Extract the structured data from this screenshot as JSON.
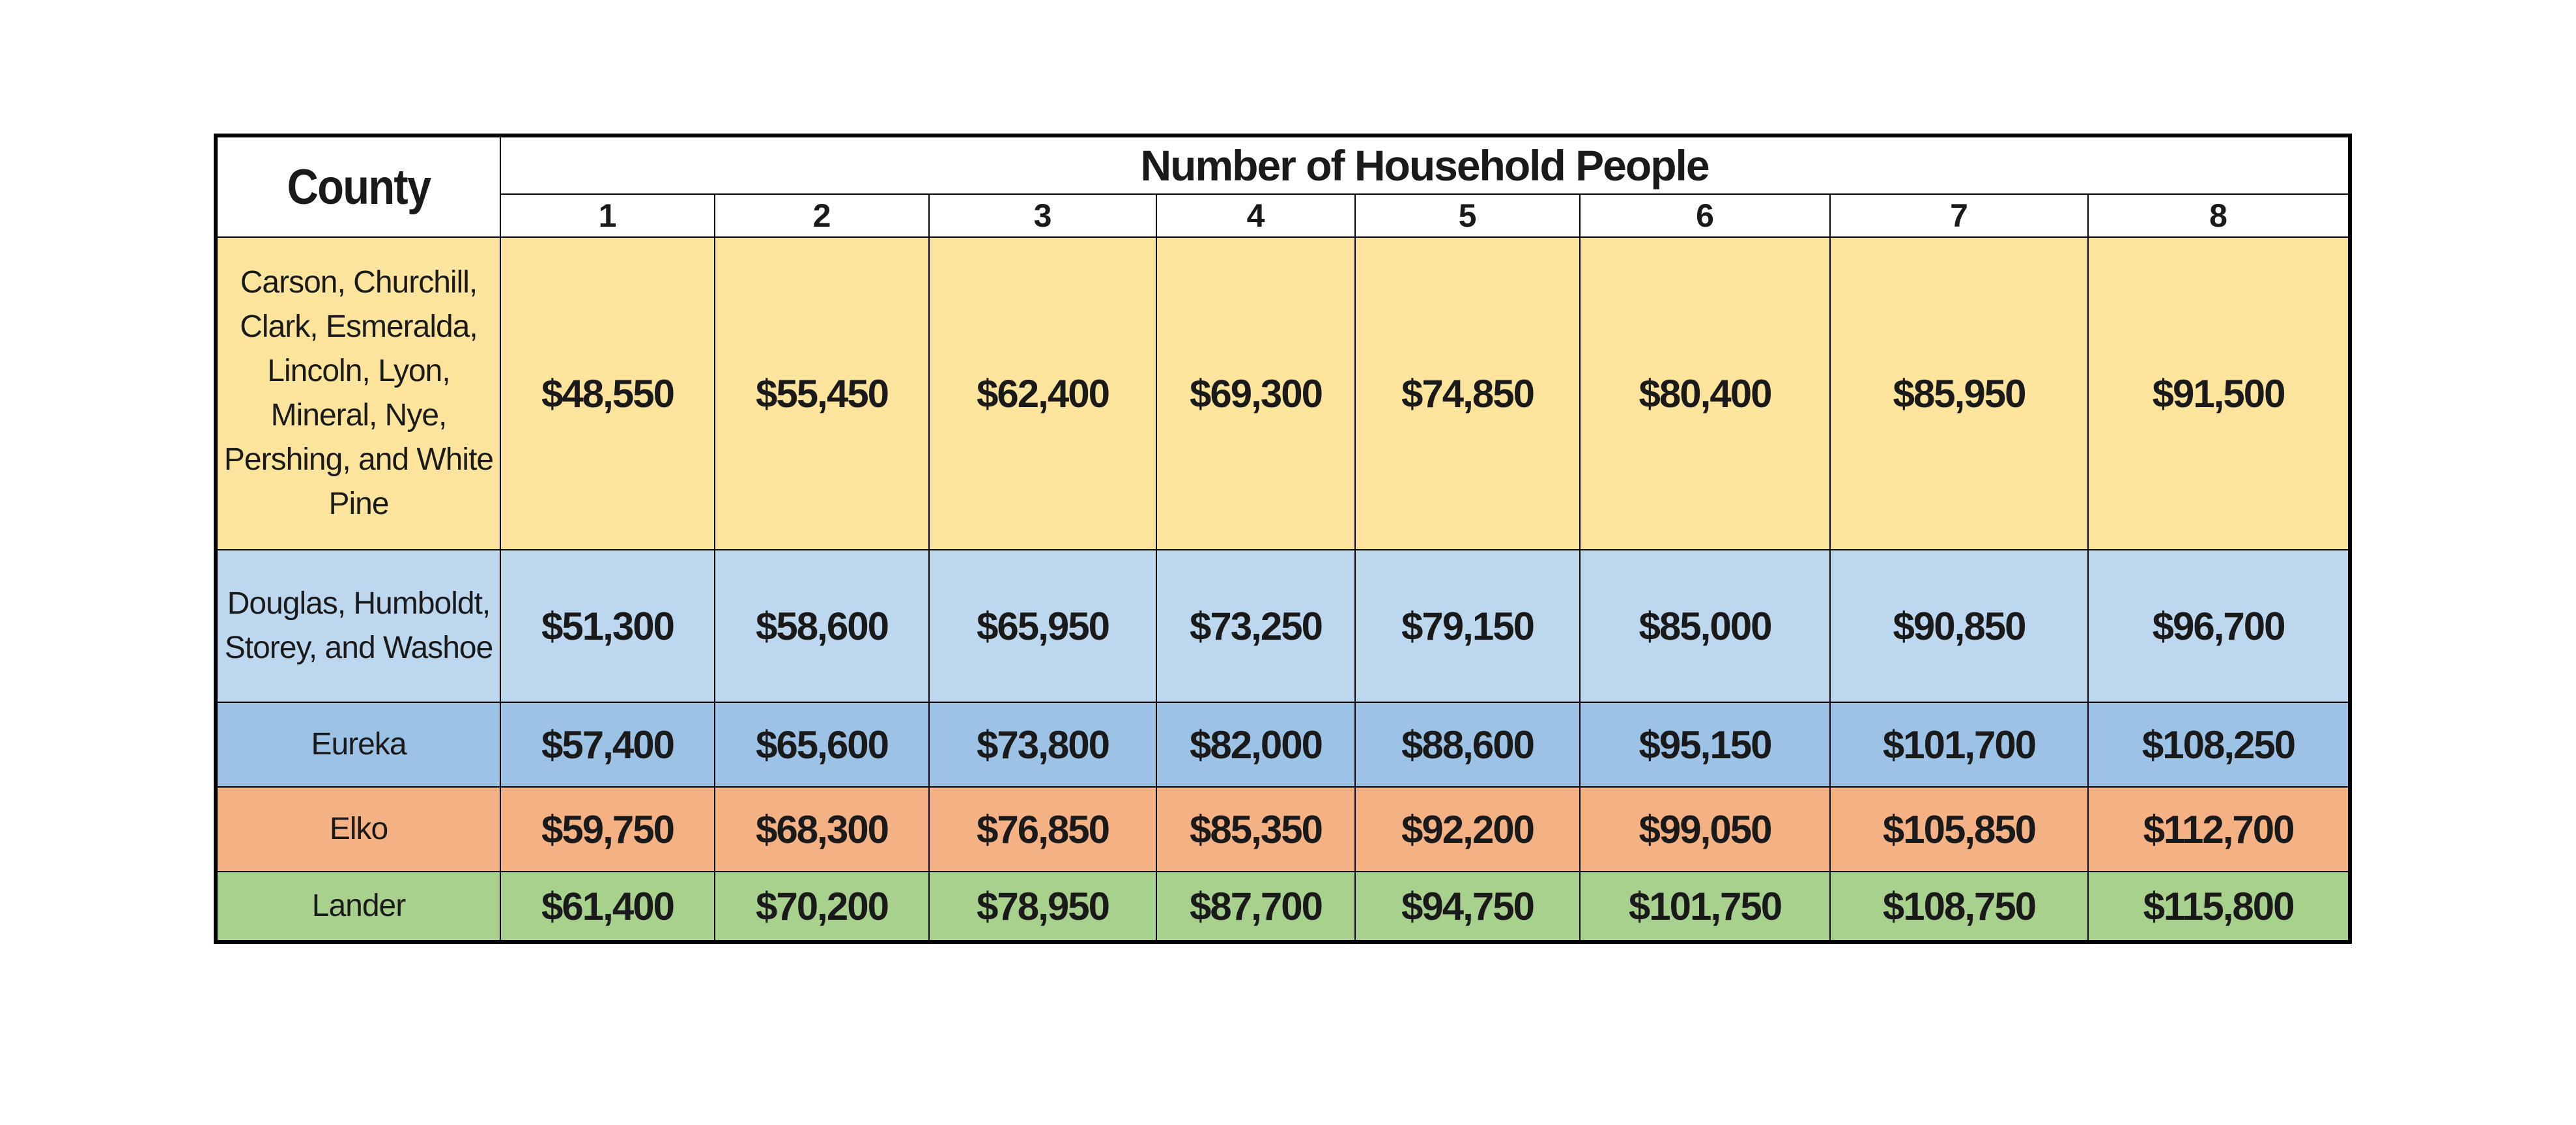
{
  "table": {
    "county_header": "County",
    "group_header": "Number of Household People",
    "household_sizes": [
      "1",
      "2",
      "3",
      "4",
      "5",
      "6",
      "7",
      "8"
    ],
    "rows": [
      {
        "county": "Carson, Churchill, Clark, Esmeralda, Lincoln, Lyon, Mineral, Nye, Pershing, and White Pine",
        "values": [
          "$48,550",
          "$55,450",
          "$62,400",
          "$69,300",
          "$74,850",
          "$80,400",
          "$85,950",
          "$91,500"
        ],
        "color": "#fde49c"
      },
      {
        "county": "Douglas, Humboldt, Storey, and Washoe",
        "values": [
          "$51,300",
          "$58,600",
          "$65,950",
          "$73,250",
          "$79,150",
          "$85,000",
          "$90,850",
          "$96,700"
        ],
        "color": "#bdd7ee"
      },
      {
        "county": "Eureka",
        "values": [
          "$57,400",
          "$65,600",
          "$73,800",
          "$82,000",
          "$88,600",
          "$95,150",
          "$101,700",
          "$108,250"
        ],
        "color": "#9cc2e5"
      },
      {
        "county": "Elko",
        "values": [
          "$59,750",
          "$68,300",
          "$76,850",
          "$85,350",
          "$92,200",
          "$99,050",
          "$105,850",
          "$112,700"
        ],
        "color": "#f4b183"
      },
      {
        "county": "Lander",
        "values": [
          "$61,400",
          "$70,200",
          "$78,950",
          "$87,700",
          "$94,750",
          "$101,750",
          "$108,750",
          "$115,800"
        ],
        "color": "#a9d18e"
      }
    ]
  }
}
